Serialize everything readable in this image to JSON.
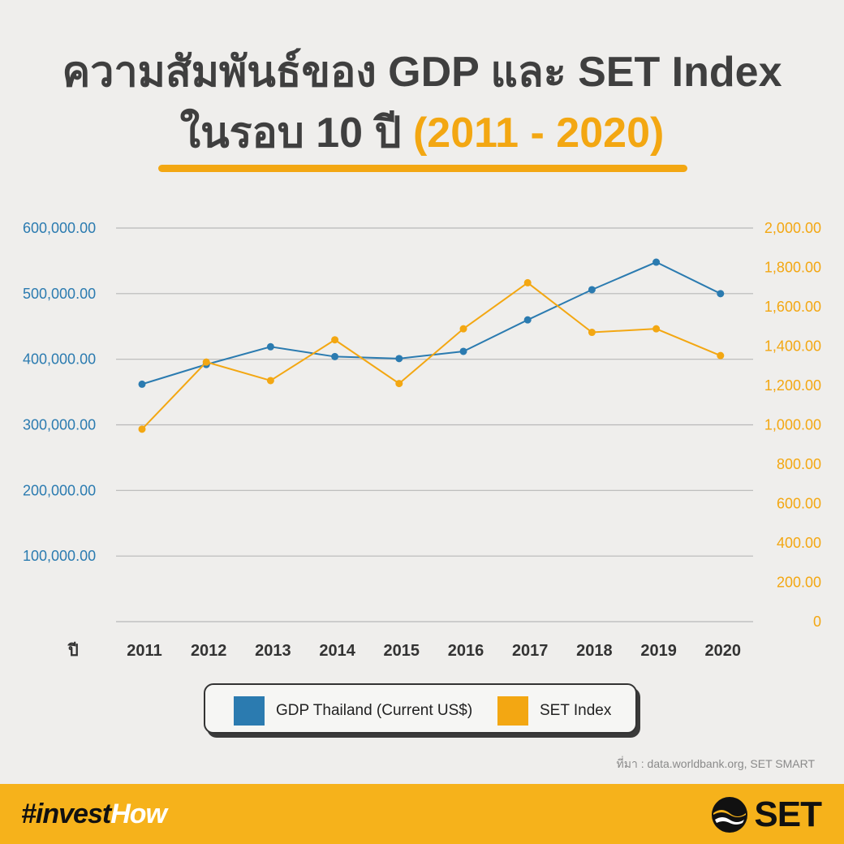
{
  "title": {
    "line1": "ความสัมพันธ์ของ GDP และ SET Index",
    "line2_prefix": "ในรอบ 10 ปี ",
    "line2_accent": "(2011 - 2020)"
  },
  "colors": {
    "gdp": "#2b7bb0",
    "set": "#f3a712",
    "grid": "#b8b8b8",
    "axis_text": "#333333"
  },
  "chart_data": {
    "type": "line",
    "x_axis_title": "ปี",
    "categories": [
      "2011",
      "2012",
      "2013",
      "2014",
      "2015",
      "2016",
      "2017",
      "2018",
      "2019",
      "2020"
    ],
    "left_axis": {
      "ticks": [
        "100,000.00",
        "200,000.00",
        "300,000.00",
        "400,000.00",
        "500,000.00",
        "600,000.00"
      ],
      "range": [
        0,
        600000
      ]
    },
    "right_axis": {
      "ticks": [
        "0",
        "200.00",
        "400.00",
        "600.00",
        "800.00",
        "1,000.00",
        "1,200.00",
        "1,400.00",
        "1,600.00",
        "1,800.00",
        "2,000.00"
      ],
      "range": [
        0,
        2000
      ]
    },
    "series": [
      {
        "name": "GDP Thailand (Current US$)",
        "axis": "left",
        "values": [
          362000,
          392000,
          419000,
          404000,
          401000,
          412000,
          460000,
          506000,
          548000,
          500000
        ]
      },
      {
        "name": "SET Index",
        "axis": "right",
        "values": [
          978,
          1319,
          1225,
          1432,
          1210,
          1488,
          1722,
          1470,
          1488,
          1352
        ]
      }
    ]
  },
  "legend": {
    "gdp_label": "GDP Thailand (Current US$)",
    "set_label": "SET Index"
  },
  "source": "ที่มา : data.worldbank.org, SET SMART",
  "footer": {
    "hashtag_main": "#invest",
    "hashtag_accent": "How",
    "logo_text": "SET"
  }
}
